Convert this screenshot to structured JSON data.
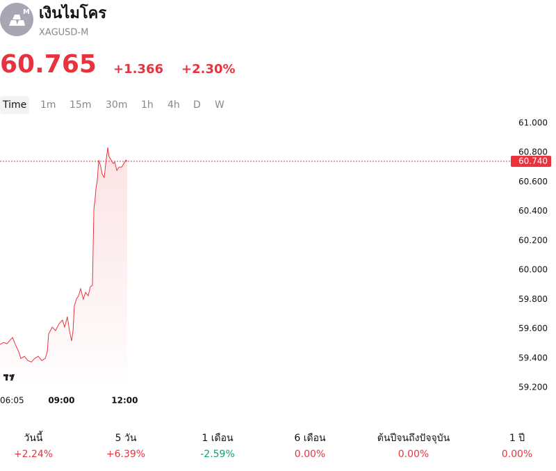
{
  "header": {
    "badge": "M",
    "title": "เงินไมโคร",
    "symbol": "XAGUSD-M",
    "price": "60.765",
    "change": "+1.366",
    "change_percent": "+2.30%"
  },
  "timeframes": [
    "Time",
    "1m",
    "15m",
    "30m",
    "1h",
    "4h",
    "D",
    "W"
  ],
  "chart_data": {
    "type": "line",
    "color": "#e8333f",
    "x": [
      6.08,
      6.25,
      6.41,
      6.58,
      6.68,
      6.81,
      6.97,
      7.07,
      7.24,
      7.4,
      7.57,
      7.73,
      7.9,
      8.06,
      8.23,
      8.33,
      8.39,
      8.56,
      8.72,
      8.89,
      9.05,
      9.15,
      9.28,
      9.38,
      9.48,
      9.55,
      9.61,
      9.71,
      9.81,
      9.91,
      10.04,
      10.14,
      10.27,
      10.37,
      10.47,
      10.54,
      10.6,
      10.64,
      10.7,
      10.77,
      10.87,
      10.93,
      11.03,
      11.1,
      11.2,
      11.26,
      11.36,
      11.46,
      11.53,
      11.63,
      11.73,
      11.86,
      11.96,
      12.06,
      12.12
    ],
    "values": [
      59.493,
      59.507,
      59.498,
      59.526,
      59.54,
      59.493,
      59.445,
      59.398,
      59.412,
      59.384,
      59.374,
      59.398,
      59.412,
      59.384,
      59.398,
      59.445,
      59.564,
      59.611,
      59.588,
      59.635,
      59.659,
      59.611,
      59.682,
      59.588,
      59.517,
      59.588,
      59.754,
      59.801,
      59.825,
      59.872,
      59.801,
      59.848,
      59.825,
      59.886,
      59.896,
      60.417,
      60.488,
      60.559,
      60.607,
      60.749,
      60.701,
      60.654,
      60.63,
      60.725,
      60.834,
      60.773,
      60.749,
      60.725,
      60.735,
      60.678,
      60.701,
      60.701,
      60.725,
      60.749,
      60.739
    ],
    "xlim": [
      6.0833,
      30.33
    ],
    "xticks": [
      {
        "value": 6.0833,
        "label": "06:05"
      },
      {
        "value": 9,
        "label": "09:00"
      },
      {
        "value": 12,
        "label": "12:00"
      }
    ],
    "ylim": [
      59.2,
      61.0
    ],
    "yticks": [
      {
        "value": 61.0,
        "label": "61.000"
      },
      {
        "value": 60.8,
        "label": "60.800"
      },
      {
        "value": 60.6,
        "label": "60.600"
      },
      {
        "value": 60.4,
        "label": "60.400"
      },
      {
        "value": 60.2,
        "label": "60.200"
      },
      {
        "value": 60.0,
        "label": "60.000"
      },
      {
        "value": 59.8,
        "label": "59.800"
      },
      {
        "value": 59.6,
        "label": "59.600"
      },
      {
        "value": 59.4,
        "label": "59.400"
      },
      {
        "value": 59.2,
        "label": "59.200"
      }
    ],
    "last_price": {
      "value": 60.74,
      "label": "60.740"
    }
  },
  "performance": [
    {
      "label": "วันนี้",
      "value": "+2.24%",
      "color": "#e8333f"
    },
    {
      "label": "5 วัน",
      "value": "+6.39%",
      "color": "#e8333f"
    },
    {
      "label": "1 เดือน",
      "value": "-2.59%",
      "color": "#0e9f6e"
    },
    {
      "label": "6 เดือน",
      "value": "0.00%",
      "color": "#e8333f"
    },
    {
      "label": "ต้นปีจนถึงปัจจุบัน",
      "value": "0.00%",
      "color": "#e8333f"
    },
    {
      "label": "1 ปี",
      "value": "0.00%",
      "color": "#e8333f"
    }
  ]
}
